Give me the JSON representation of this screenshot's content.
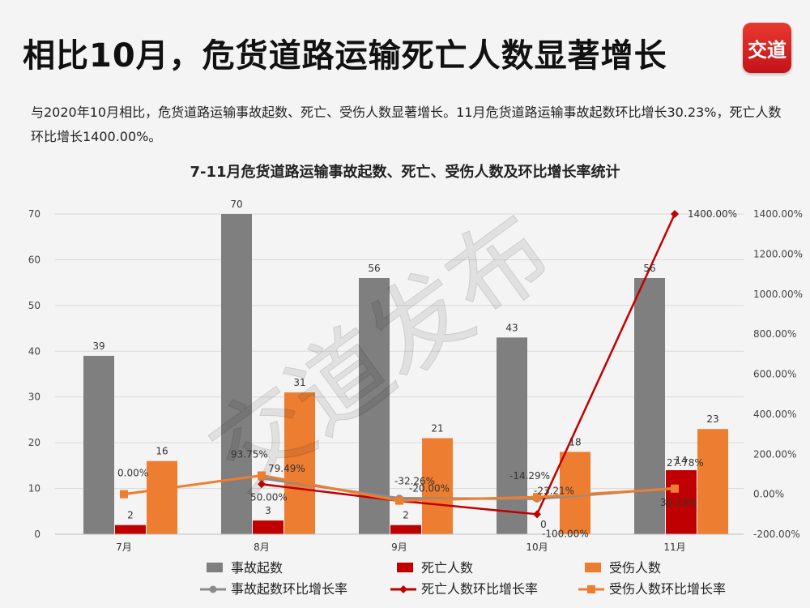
{
  "header": {
    "title": "相比10月，危货道路运输死亡人数显著增长",
    "logo_text": "交道",
    "description": "与2020年10月相比，危货道路运输事故起数、死亡、受伤人数显著增长。11月危货道路运输事故起数环比增长30.23%，死亡人数环比增长1400.00%。"
  },
  "watermark": "交道发布",
  "chart_data": {
    "type": "bar",
    "title": "7-11月危货道路运输事故起数、死亡、受伤人数及环比增长率统计",
    "categories": [
      "7月",
      "8月",
      "9月",
      "10月",
      "11月"
    ],
    "y_left": {
      "min": 0,
      "max": 70,
      "step": 10,
      "ticks": [
        "0",
        "10",
        "20",
        "30",
        "40",
        "50",
        "60",
        "70"
      ]
    },
    "y_right": {
      "min": -200,
      "max": 1400,
      "step": 200,
      "ticks": [
        "-200.00%",
        "0.00%",
        "200.00%",
        "400.00%",
        "600.00%",
        "800.00%",
        "1000.00%",
        "1200.00%",
        "1400.00%"
      ]
    },
    "bar_series": [
      {
        "name": "事故起数",
        "color": "#7f7f7f",
        "values": [
          39,
          70,
          56,
          43,
          56
        ],
        "labels": [
          "39",
          "70",
          "56",
          "43",
          "56"
        ]
      },
      {
        "name": "死亡人数",
        "color": "#c00000",
        "values": [
          2,
          3,
          2,
          0,
          14
        ],
        "labels": [
          "2",
          "3",
          "2",
          "0",
          "14"
        ]
      },
      {
        "name": "受伤人数",
        "color": "#ed7d31",
        "values": [
          16,
          31,
          21,
          18,
          23
        ],
        "labels": [
          "16",
          "31",
          "21",
          "18",
          "23"
        ]
      }
    ],
    "line_series": [
      {
        "name": "事故起数环比增长率",
        "color": "#8c8c8c",
        "marker": "circle",
        "values": [
          null,
          79.49,
          -20.0,
          -23.21,
          30.23
        ],
        "labels": [
          null,
          "79.49%",
          "-20.00%",
          "-23.21%",
          "30.23%"
        ]
      },
      {
        "name": "死亡人数环比增长率",
        "color": "#c00000",
        "marker": "diamond",
        "values": [
          null,
          50.0,
          -33.33,
          -100.0,
          1400.0
        ],
        "labels": [
          null,
          "50.00%",
          "-...",
          "-100.00%",
          "1400.00%"
        ]
      },
      {
        "name": "受伤人数环比增长率",
        "color": "#ed7d31",
        "marker": "square",
        "values": [
          0.0,
          93.75,
          -32.26,
          -14.29,
          27.78
        ],
        "labels": [
          "0.00%",
          "93.75%",
          "-32.26%",
          "-14.29%",
          "27.78%"
        ]
      }
    ],
    "legend_position": "bottom",
    "grid": true
  }
}
